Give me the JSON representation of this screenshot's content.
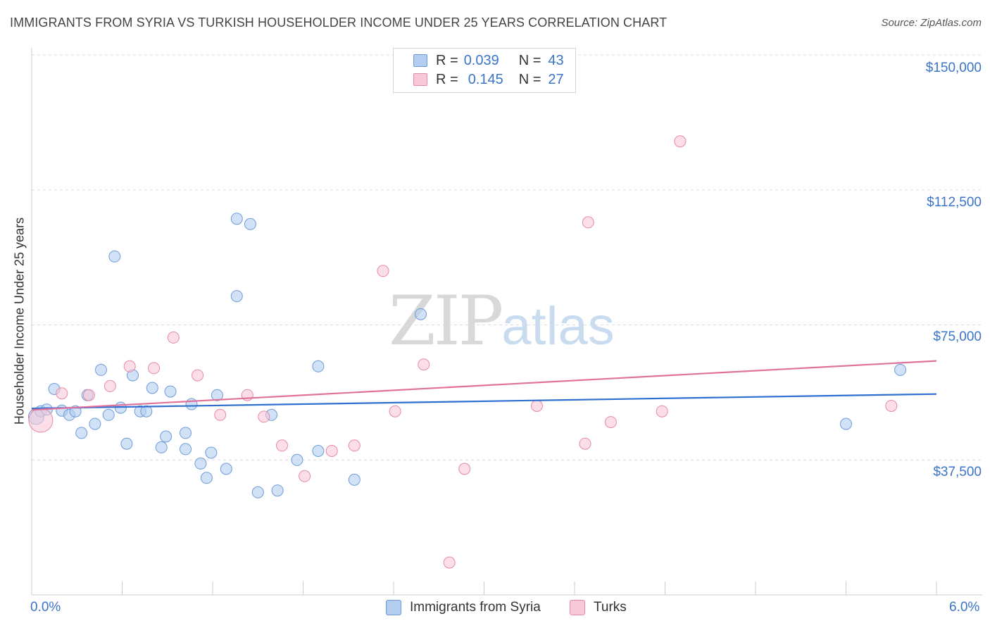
{
  "title": "IMMIGRANTS FROM SYRIA VS TURKISH HOUSEHOLDER INCOME UNDER 25 YEARS CORRELATION CHART",
  "source": "Source: ZipAtlas.com",
  "watermark": {
    "zip": "ZIP",
    "atlas": "atlas"
  },
  "legend": {
    "rows": [
      {
        "r_label": "R =",
        "r_value": "0.039",
        "n_label": "N =",
        "n_value": "43",
        "color": "#b3cdf0",
        "border": "#6d9bd8"
      },
      {
        "r_label": "R =",
        "r_value": "0.145",
        "n_label": "N =",
        "n_value": "27",
        "color": "#f8c8d7",
        "border": "#e58aa6"
      }
    ]
  },
  "bottom_legend": [
    {
      "label": "Immigrants from Syria",
      "color": "#b3cdf0",
      "border": "#6d9bd8"
    },
    {
      "label": "Turks",
      "color": "#f8c8d7",
      "border": "#e58aa6"
    }
  ],
  "chart_data": {
    "type": "scatter",
    "title": "IMMIGRANTS FROM SYRIA VS TURKISH HOUSEHOLDER INCOME UNDER 25 YEARS CORRELATION CHART",
    "xlabel": "",
    "ylabel": "Householder Income Under 25 years",
    "xlim": [
      0,
      6
    ],
    "ylim": [
      0,
      155000
    ],
    "x_tick_labels": [
      "0.0%",
      "6.0%"
    ],
    "y_ticks": [
      37500,
      75000,
      112500,
      150000
    ],
    "y_tick_labels": [
      "$37,500",
      "$75,000",
      "$112,500",
      "$150,000"
    ],
    "grid": true,
    "series": [
      {
        "name": "Immigrants from Syria",
        "color": "#6d9bd8",
        "fill": "#b3cdf0",
        "line_color": "#2f6fcf",
        "trend": [
          [
            0,
            51800
          ],
          [
            6,
            55800
          ]
        ],
        "points": [
          [
            0.03,
            49500
          ],
          [
            0.06,
            51000
          ],
          [
            0.1,
            51500
          ],
          [
            0.2,
            51200
          ],
          [
            0.15,
            57200
          ],
          [
            0.25,
            50000
          ],
          [
            0.29,
            51000
          ],
          [
            0.33,
            45000
          ],
          [
            0.37,
            55500
          ],
          [
            0.42,
            47500
          ],
          [
            0.46,
            62500
          ],
          [
            0.51,
            50000
          ],
          [
            0.55,
            94000
          ],
          [
            0.59,
            52000
          ],
          [
            0.63,
            42000
          ],
          [
            0.67,
            61000
          ],
          [
            0.72,
            51000
          ],
          [
            0.76,
            51000
          ],
          [
            0.8,
            57500
          ],
          [
            0.86,
            41000
          ],
          [
            0.89,
            44000
          ],
          [
            0.92,
            56500
          ],
          [
            1.02,
            45000
          ],
          [
            1.02,
            40500
          ],
          [
            1.06,
            53000
          ],
          [
            1.12,
            36500
          ],
          [
            1.16,
            32500
          ],
          [
            1.19,
            39500
          ],
          [
            1.23,
            55500
          ],
          [
            1.29,
            35000
          ],
          [
            1.36,
            104500
          ],
          [
            1.36,
            83000
          ],
          [
            1.45,
            103000
          ],
          [
            1.5,
            28500
          ],
          [
            1.59,
            50000
          ],
          [
            1.63,
            29000
          ],
          [
            1.76,
            37500
          ],
          [
            1.9,
            40000
          ],
          [
            1.9,
            63500
          ],
          [
            2.14,
            32000
          ],
          [
            2.58,
            78000
          ],
          [
            5.4,
            47500
          ],
          [
            5.76,
            62500
          ]
        ]
      },
      {
        "name": "Turks",
        "color": "#e58aa6",
        "fill": "#f8c8d7",
        "line_color": "#e0719b",
        "trend": [
          [
            0,
            51400
          ],
          [
            6,
            65000
          ]
        ],
        "points": [
          [
            0.06,
            48500
          ],
          [
            0.2,
            56000
          ],
          [
            0.38,
            55500
          ],
          [
            0.52,
            58000
          ],
          [
            0.65,
            63500
          ],
          [
            0.81,
            63000
          ],
          [
            0.94,
            71500
          ],
          [
            1.1,
            61000
          ],
          [
            1.25,
            50000
          ],
          [
            1.43,
            55500
          ],
          [
            1.54,
            49500
          ],
          [
            1.66,
            41500
          ],
          [
            1.81,
            33000
          ],
          [
            1.99,
            40000
          ],
          [
            2.14,
            41500
          ],
          [
            2.33,
            90000
          ],
          [
            2.41,
            51000
          ],
          [
            2.6,
            64000
          ],
          [
            2.77,
            9000
          ],
          [
            2.87,
            35000
          ],
          [
            3.35,
            52500
          ],
          [
            3.69,
            103500
          ],
          [
            3.67,
            42000
          ],
          [
            3.84,
            48000
          ],
          [
            4.18,
            51000
          ],
          [
            4.3,
            126000
          ],
          [
            5.7,
            52500
          ]
        ]
      }
    ]
  }
}
